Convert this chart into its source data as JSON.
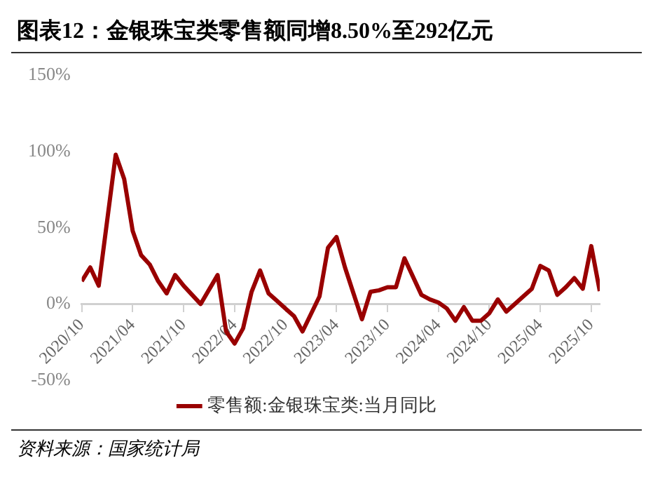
{
  "chart_data": {
    "type": "line",
    "title": "图表12：金银珠宝类零售额同增8.50%至292亿元",
    "annotations": [
      "资料来源：国家统计局"
    ],
    "x": [
      "2020-10",
      "2020-11",
      "2020-12",
      "2021-02",
      "2021-03",
      "2021-04",
      "2021-05",
      "2021-06",
      "2021-07",
      "2021-08",
      "2021-09",
      "2021-10",
      "2021-11",
      "2021-12",
      "2022-02",
      "2022-03",
      "2022-04",
      "2022-05",
      "2022-06",
      "2022-07",
      "2022-08",
      "2022-09",
      "2022-10",
      "2022-11",
      "2022-12",
      "2023-02",
      "2023-03",
      "2023-04",
      "2023-05",
      "2023-06",
      "2023-07",
      "2023-08",
      "2023-09",
      "2023-10",
      "2023-11",
      "2023-12",
      "2024-02",
      "2024-03",
      "2024-04",
      "2024-05",
      "2024-06",
      "2024-07",
      "2024-08",
      "2024-09",
      "2024-10",
      "2024-11",
      "2024-12",
      "2025-02",
      "2025-03",
      "2025-04",
      "2025-05",
      "2025-06",
      "2025-07",
      "2025-08",
      "2025-09",
      "2025-10",
      "2025-11"
    ],
    "series": [
      {
        "name": "零售额:金银珠宝类:当月同比",
        "color": "#990000",
        "values": [
          15,
          24,
          12,
          98,
          82,
          48,
          32,
          26,
          15,
          7,
          19,
          12,
          6,
          0,
          19,
          -18,
          -26,
          -16,
          8,
          22,
          7,
          2,
          -3,
          -8,
          -18,
          5,
          37,
          44,
          24,
          7,
          -10,
          8,
          9,
          11,
          11,
          30,
          6,
          3,
          1,
          -3,
          -11,
          -2,
          -11,
          -11,
          -6,
          3,
          -5,
          5,
          10,
          25,
          22,
          6,
          11,
          17,
          10,
          38,
          8.5
        ]
      }
    ],
    "xlim": [
      "2020-10",
      "2025-11"
    ],
    "xticks": [
      {
        "value": "2020-10",
        "label": "2020/10"
      },
      {
        "value": "2021-04",
        "label": "2021/04"
      },
      {
        "value": "2021-10",
        "label": "2021/10"
      },
      {
        "value": "2022-04",
        "label": "2022/04"
      },
      {
        "value": "2022-10",
        "label": "2022/10"
      },
      {
        "value": "2023-04",
        "label": "2023/04"
      },
      {
        "value": "2023-10",
        "label": "2023/10"
      },
      {
        "value": "2024-04",
        "label": "2024/04"
      },
      {
        "value": "2024-10",
        "label": "2024/10"
      },
      {
        "value": "2025-04",
        "label": "2025/04"
      },
      {
        "value": "2025-10",
        "label": "2025/10"
      }
    ],
    "ylim": [
      -50,
      150
    ],
    "yticks": [
      {
        "value": -50,
        "label": "-50%"
      },
      {
        "value": 0,
        "label": "0%"
      },
      {
        "value": 50,
        "label": "50%"
      },
      {
        "value": 100,
        "label": "100%"
      },
      {
        "value": 150,
        "label": "150%"
      }
    ],
    "grid": false,
    "legend": "bottom",
    "marker": "none",
    "line_style": "solid"
  }
}
